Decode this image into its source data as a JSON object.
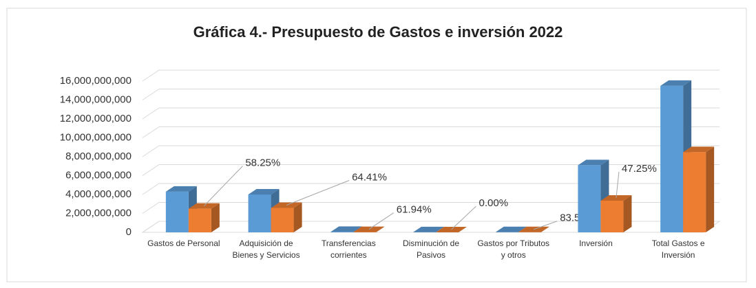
{
  "chart_data": {
    "type": "bar3d",
    "title": "Gráfica 4.- Presupuesto de Gastos e inversión 2022",
    "categories": [
      "Gastos de Personal",
      "Adquisición de Bienes y Servicios",
      "Transferencias corrientes",
      "Disminución de Pasivos",
      "Gastos por Tributos y otros",
      "Inversión",
      "Total Gastos e Inversión"
    ],
    "series": [
      {
        "color": "#5b9bd5",
        "values": [
          4300000000,
          4000000000,
          50000000,
          10000000,
          20000000,
          7100000000,
          15500000000
        ]
      },
      {
        "color": "#ed7d31",
        "values": [
          2500000000,
          2580000000,
          31000000,
          0,
          17000000,
          3350000000,
          8480000000
        ],
        "annotations": [
          "58.25%",
          "64.41%",
          "61.94%",
          "0.00%",
          "83.54%",
          "47.25%",
          null
        ]
      }
    ],
    "ylim": [
      0,
      16000000000
    ],
    "yticks": [
      0,
      {
        "value": 2000000000,
        "label": "2,000,000,000"
      },
      {
        "value": 4000000000,
        "label": "4,000,000,000"
      },
      {
        "value": 6000000000,
        "label": "6,000,000,000"
      },
      {
        "value": 8000000000,
        "label": "8,000,000,000"
      },
      {
        "value": 10000000000,
        "label": "10,000,000,000"
      },
      {
        "value": 12000000000,
        "label": "12,000,000,000"
      },
      {
        "value": 14000000000,
        "label": "14,000,000,000"
      },
      {
        "value": 16000000000,
        "label": "16,000,000,000"
      }
    ],
    "grid": true
  }
}
